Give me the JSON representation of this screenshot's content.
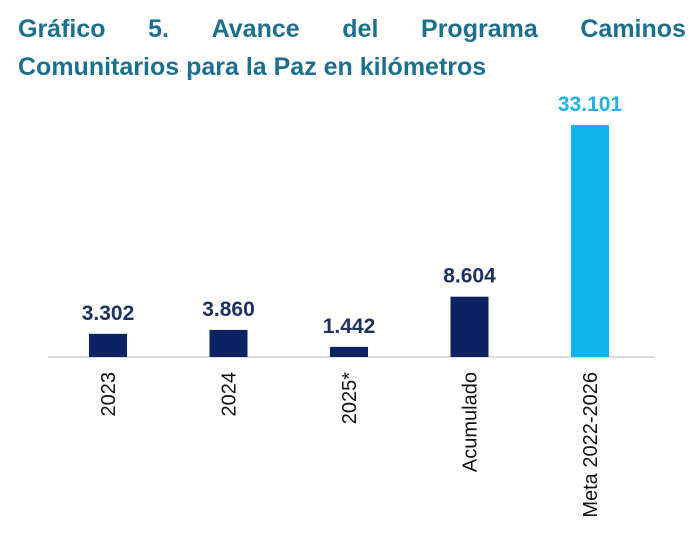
{
  "title_words": [
    "Gráfico",
    "5.",
    "Avance",
    "del",
    "Programa",
    "Caminos"
  ],
  "title_line2": "Comunitarios para la Paz en kilómetros",
  "chart_data": {
    "type": "bar",
    "title": "Gráfico 5. Avance del Programa Caminos Comunitarios para la Paz en kilómetros",
    "categories": [
      "2023",
      "2024",
      "2025*",
      "Acumulado",
      "Meta 2022-2026"
    ],
    "values": [
      3302,
      3860,
      1442,
      8604,
      33101
    ],
    "data_labels": [
      "3.302",
      "3.860",
      "1.442",
      "8.604",
      "33.101"
    ],
    "colors": [
      "#0c2262",
      "#0c2262",
      "#0c2262",
      "#0c2262",
      "#12b2ec"
    ],
    "label_colors": [
      "#1f3163",
      "#1f3163",
      "#1f3163",
      "#1f3163",
      "#1eb0e6"
    ],
    "xlabel": "",
    "ylabel": "",
    "ylim": [
      0,
      33101
    ],
    "grid": false,
    "legend": "none"
  }
}
